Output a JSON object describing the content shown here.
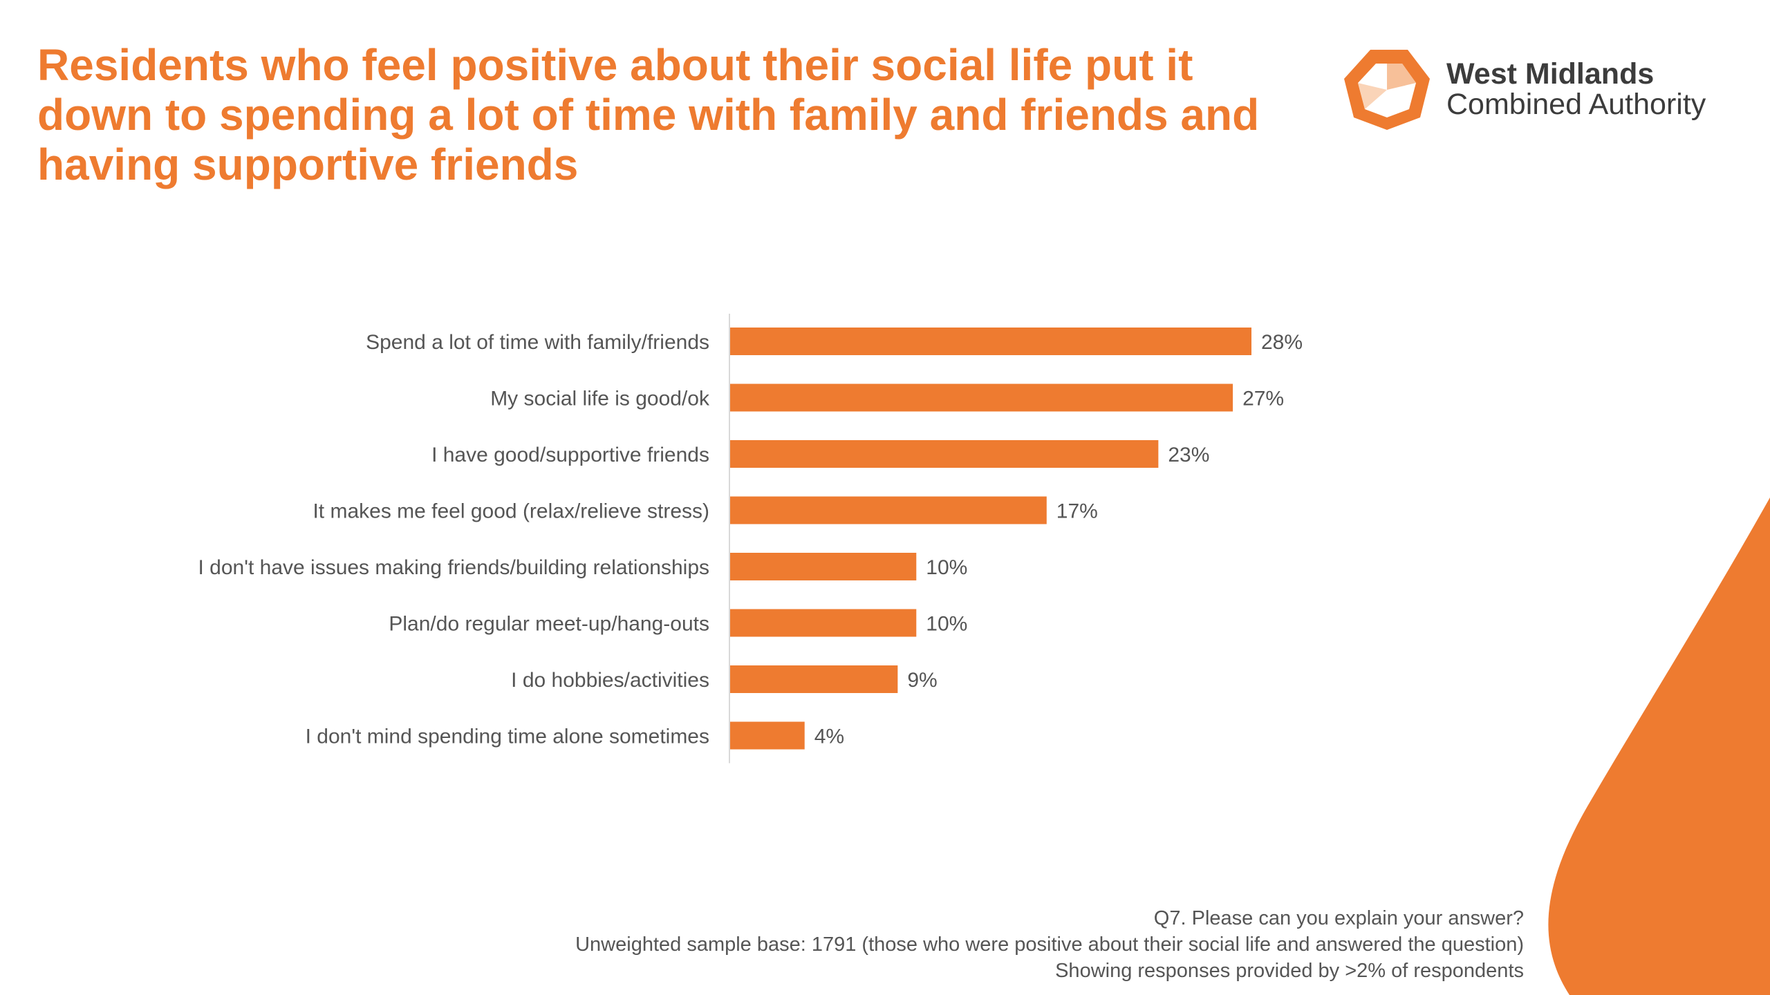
{
  "title": "Residents who feel positive about their social life put it down to spending a lot of time with family and friends and having supportive friends",
  "logo": {
    "line1": "West Midlands",
    "line2": "Combined Authority",
    "icon": "hexagon-logo-icon"
  },
  "colors": {
    "accent": "#EE7B30",
    "text": "#555555",
    "axis": "#d9d9d9"
  },
  "chart_data": {
    "type": "bar",
    "orientation": "horizontal",
    "title": "",
    "xlabel": "",
    "ylabel": "",
    "xlim": [
      0,
      28
    ],
    "grid": false,
    "legend": "none",
    "categories": [
      "Spend a lot of time with family/friends",
      "My social life is good/ok",
      "I have good/supportive friends",
      "It makes me feel good (relax/relieve stress)",
      "I don't have issues making friends/building relationships",
      "Plan/do regular meet-up/hang-outs",
      "I do hobbies/activities",
      "I don't mind spending time alone sometimes"
    ],
    "values": [
      28,
      27,
      23,
      17,
      10,
      10,
      9,
      4
    ],
    "value_labels": [
      "28%",
      "27%",
      "23%",
      "17%",
      "10%",
      "10%",
      "9%",
      "4%"
    ],
    "unit": "%"
  },
  "footnotes": {
    "question": "Q7. Please can you explain your answer?",
    "base": "Unweighted sample base: 1791 (those who were positive about their social life and answered the question)",
    "threshold": "Showing responses provided by >2% of respondents"
  }
}
